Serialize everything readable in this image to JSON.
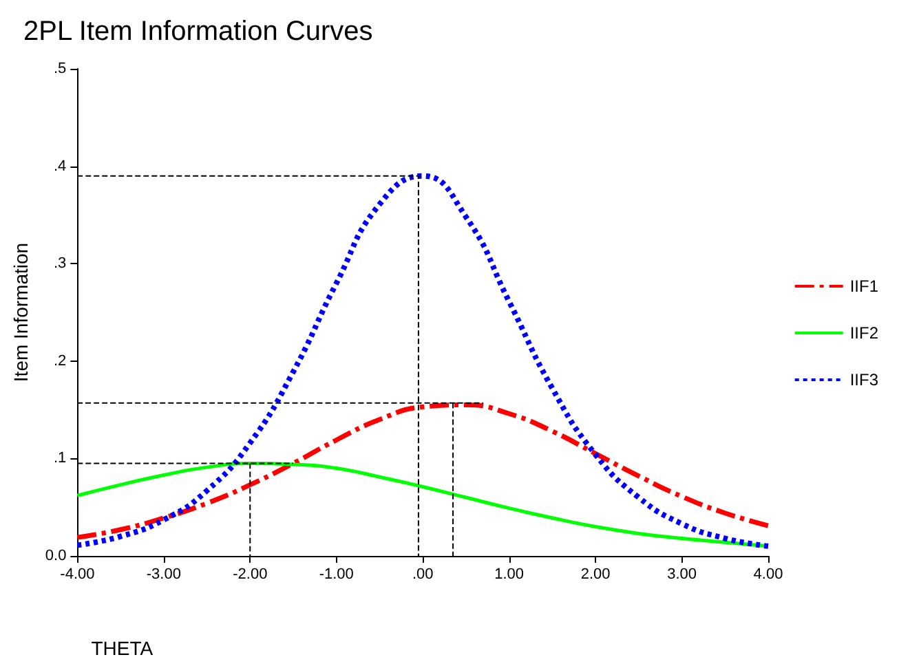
{
  "chart_data": {
    "type": "line",
    "title": "2PL Item Information Curves",
    "xlabel": "THETA",
    "ylabel": "Item Information",
    "xlim": [
      -4,
      4
    ],
    "xticks": [
      {
        "value": -4,
        "label": "-4.00"
      },
      {
        "value": -3,
        "label": "-3.00"
      },
      {
        "value": -2,
        "label": "-2.00"
      },
      {
        "value": -1,
        "label": "-1.00"
      },
      {
        "value": 0,
        "label": ".00"
      },
      {
        "value": 1,
        "label": "1.00"
      },
      {
        "value": 2,
        "label": "2.00"
      },
      {
        "value": 3,
        "label": "3.00"
      },
      {
        "value": 4,
        "label": "4.00"
      }
    ],
    "ylim": [
      0,
      0.5
    ],
    "yticks": [
      {
        "value": 0,
        "label": "0.0"
      },
      {
        "value": 0.1,
        "label": ".1"
      },
      {
        "value": 0.2,
        "label": ".2"
      },
      {
        "value": 0.3,
        "label": ".3"
      },
      {
        "value": 0.4,
        "label": ".4"
      },
      {
        "value": 0.5,
        "label": ".5"
      }
    ],
    "grid": false,
    "legend": "right",
    "marker": "none",
    "x": [
      -4,
      -3.5,
      -3,
      -2.5,
      -2,
      -1.5,
      -1,
      -0.5,
      0,
      0.5,
      1,
      1.5,
      2,
      2.5,
      3,
      3.5,
      4
    ],
    "series": [
      {
        "name": "IIF1",
        "color": "#ff0000",
        "line_style": "dashdot",
        "values": [
          0.019,
          0.027,
          0.039,
          0.054,
          0.073,
          0.095,
          0.119,
          0.14,
          0.153,
          0.155,
          0.146,
          0.128,
          0.105,
          0.082,
          0.061,
          0.044,
          0.031
        ]
      },
      {
        "name": "IIF2",
        "color": "#00ff00",
        "line_style": "solid",
        "values": [
          0.062,
          0.073,
          0.083,
          0.091,
          0.095,
          0.094,
          0.09,
          0.081,
          0.071,
          0.06,
          0.049,
          0.039,
          0.03,
          0.023,
          0.018,
          0.014,
          0.01
        ]
      },
      {
        "name": "IIF3",
        "color": "#0000ff",
        "line_style": "dotted",
        "values": [
          0.011,
          0.02,
          0.037,
          0.067,
          0.116,
          0.189,
          0.28,
          0.361,
          0.39,
          0.348,
          0.261,
          0.172,
          0.104,
          0.06,
          0.033,
          0.018,
          0.01
        ]
      },
      {
        "color": "#000000",
        "line_style": "dashed",
        "x": [
          -4,
          -0.05,
          -0.05
        ],
        "values": [
          0.39,
          0.39,
          0
        ]
      },
      {
        "color": "#000000",
        "line_style": "dashed",
        "x": [
          -4,
          0.7
        ],
        "values": [
          0.157,
          0.157
        ]
      },
      {
        "color": "#000000",
        "line_style": "dashed",
        "x": [
          0.35,
          0.35
        ],
        "values": [
          0.157,
          0
        ]
      },
      {
        "color": "#000000",
        "line_style": "dashed",
        "x": [
          -4,
          -1.5
        ],
        "values": [
          0.095,
          0.095
        ]
      },
      {
        "color": "#000000",
        "line_style": "dashed",
        "x": [
          -2,
          -2
        ],
        "values": [
          0.095,
          0
        ]
      }
    ]
  }
}
